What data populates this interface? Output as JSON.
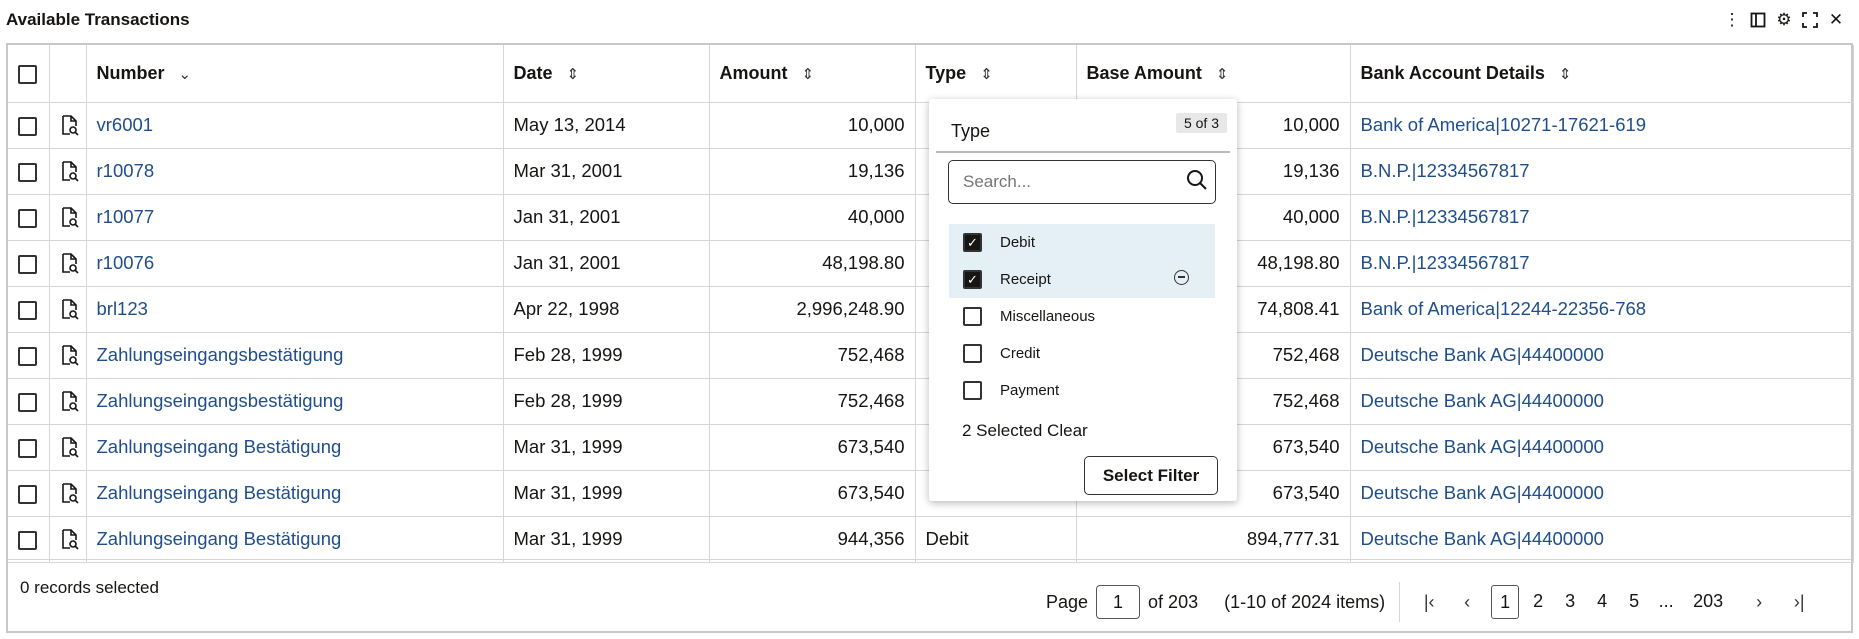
{
  "header": {
    "title": "Available Transactions"
  },
  "toolbar": {
    "icons": [
      "more-vert-icon",
      "panel-icon",
      "gear-icon",
      "expand-icon",
      "close-icon"
    ]
  },
  "table": {
    "columns": [
      {
        "label": "Number"
      },
      {
        "label": "Date"
      },
      {
        "label": "Amount"
      },
      {
        "label": "Type"
      },
      {
        "label": "Base Amount"
      },
      {
        "label": "Bank Account Details"
      }
    ],
    "rows": [
      {
        "number": "vr6001",
        "date": "May 13, 2014",
        "amount": "10,000",
        "type": "",
        "base_amount": "10,000",
        "bank": "Bank of America|10271-17621-619"
      },
      {
        "number": "r10078",
        "date": "Mar 31, 2001",
        "amount": "19,136",
        "type": "",
        "base_amount": "19,136",
        "bank": "B.N.P.|12334567817"
      },
      {
        "number": "r10077",
        "date": "Jan 31, 2001",
        "amount": "40,000",
        "type": "",
        "base_amount": "40,000",
        "bank": "B.N.P.|12334567817"
      },
      {
        "number": "r10076",
        "date": "Jan 31, 2001",
        "amount": "48,198.80",
        "type": "",
        "base_amount": "48,198.80",
        "bank": "B.N.P.|12334567817"
      },
      {
        "number": "brl123",
        "date": "Apr 22, 1998",
        "amount": "2,996,248.90",
        "type": "",
        "base_amount": "74,808.41",
        "bank": "Bank of America|12244-22356-768"
      },
      {
        "number": "Zahlungseingangsbestätigung",
        "date": "Feb 28, 1999",
        "amount": "752,468",
        "type": "",
        "base_amount": "752,468",
        "bank": "Deutsche Bank AG|44400000"
      },
      {
        "number": "Zahlungseingangsbestätigung",
        "date": "Feb 28, 1999",
        "amount": "752,468",
        "type": "",
        "base_amount": "752,468",
        "bank": "Deutsche Bank AG|44400000"
      },
      {
        "number": "Zahlungseingang Bestätigung",
        "date": "Mar 31, 1999",
        "amount": "673,540",
        "type": "",
        "base_amount": "673,540",
        "bank": "Deutsche Bank AG|44400000"
      },
      {
        "number": "Zahlungseingang Bestätigung",
        "date": "Mar 31, 1999",
        "amount": "673,540",
        "type": "",
        "base_amount": "673,540",
        "bank": "Deutsche Bank AG|44400000"
      },
      {
        "number": "Zahlungseingang Bestätigung",
        "date": "Mar 31, 1999",
        "amount": "944,356",
        "type": "Debit",
        "base_amount": "894,777.31",
        "bank": "Deutsche Bank AG|44400000"
      }
    ]
  },
  "footer": {
    "records_selected": "0 records selected",
    "page_label": "Page",
    "current_page": "1",
    "of_pages": "of 203",
    "items_range": "(1-10 of 2024 items)",
    "pages": [
      "1",
      "2",
      "3",
      "4",
      "5",
      "...",
      "203"
    ]
  },
  "filter": {
    "title": "Type",
    "count": "5 of 3",
    "search_placeholder": "Search...",
    "options": [
      {
        "label": "Debit",
        "checked": true
      },
      {
        "label": "Receipt",
        "checked": true
      },
      {
        "label": "Miscellaneous",
        "checked": false
      },
      {
        "label": "Credit",
        "checked": false
      },
      {
        "label": "Payment",
        "checked": false
      }
    ],
    "selected_text": "2 Selected Clear",
    "button": "Select Filter"
  }
}
